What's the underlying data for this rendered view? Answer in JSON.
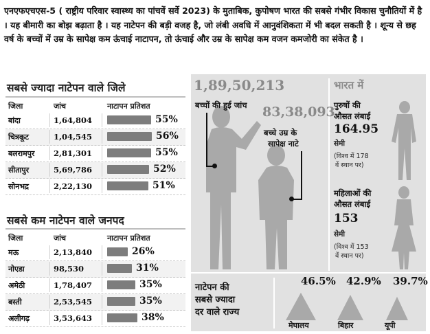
{
  "intro_text": "एनएफएचएस-5 ( राष्ट्रीय परिवार स्वास्थ्य का पांचवें सर्वे 2023) के मुताबिक, कुपोषण भारत की सबसे गंभीर विकास चुनौतियों में है । यह बीमारी का बोझ बढ़ाता है । यह नाटेपन की बड़ी वजह है, जो लंबी अवधि में आनुवंशिकता में भी बदल सकती है । शून्य से छह वर्ष के बच्चों में उम्र के सापेक्ष कम ऊंचाई नाटापन, तो ऊंचाई और उम्र के सापेक्ष कम वजन कमजोरी का संकेत है ।",
  "most_stunted": {
    "title": "सबसे ज्यादा नाटेपन वाले जिले",
    "headers": [
      "जिला",
      "जांच",
      "नाटापन प्रतिशत"
    ],
    "rows": [
      {
        "district": "बांदा",
        "tested": "1,64,804",
        "pct_label": "55%",
        "pct": 55
      },
      {
        "district": "चित्रकूट",
        "tested": "1,04,545",
        "pct_label": "56%",
        "pct": 56
      },
      {
        "district": "बलरामपुर",
        "tested": "2,81,301",
        "pct_label": "55%",
        "pct": 55
      },
      {
        "district": "सीतापुर",
        "tested": "5,69,786",
        "pct_label": "52%",
        "pct": 52
      },
      {
        "district": "सोनभद्र",
        "tested": "2,22,130",
        "pct_label": "51%",
        "pct": 51
      }
    ]
  },
  "least_stunted": {
    "title": "सबसे कम नाटेपन वाले जनपद",
    "headers": [
      "जिला",
      "जांच",
      "नाटापन प्रतिशत"
    ],
    "rows": [
      {
        "district": "मऊ",
        "tested": "2,13,840",
        "pct_label": "26%",
        "pct": 26
      },
      {
        "district": "नोएडा",
        "tested": "98,530",
        "pct_label": "31%",
        "pct": 31
      },
      {
        "district": "अमेठी",
        "tested": "1,78,407",
        "pct_label": "35%",
        "pct": 35
      },
      {
        "district": "बस्ती",
        "tested": "2,53,545",
        "pct_label": "35%",
        "pct": 35
      },
      {
        "district": "अलीगढ़",
        "tested": "3,53,643",
        "pct_label": "38%",
        "pct": 38
      }
    ]
  },
  "children": {
    "tested_number": "1,89,50,213",
    "tested_label": "बच्चों की हुई जांच",
    "stunted_number": "83,38,093",
    "stunted_label_1": "बच्चे उम्र के",
    "stunted_label_2": "सापेक्ष नाटे"
  },
  "india": {
    "title_1": "भारत में",
    "men_label_1": "पुरुषों की",
    "men_label_2": "औसत लंबाई",
    "men_height": "164.95",
    "men_unit": "सेमी",
    "men_rank_1": "(विश्व में 178",
    "men_rank_2": "वें स्थान पर)",
    "women_label_1": "महिलाओं की",
    "women_label_2": "औसत लंबाई",
    "women_height": "153",
    "women_unit": "सेमी",
    "women_rank_1": "(विश्व में 153",
    "women_rank_2": "वें स्थान पर)"
  },
  "states": {
    "title_1": "नाटेपन की",
    "title_2": "सबसे ज्यादा",
    "title_3": "दर वाले राज्य",
    "items": [
      {
        "name": "मेघालय",
        "pct_label": "46.5%",
        "pct": 46.5
      },
      {
        "name": "बिहार",
        "pct_label": "42.9%",
        "pct": 42.9
      },
      {
        "name": "यूपी",
        "pct_label": "39.7%",
        "pct": 39.7
      }
    ]
  },
  "colors": {
    "bar": "#7d7d7d",
    "panel": "#e1e1e1",
    "silhouette": "#a9a9a9",
    "big_number": "#8a8a8a"
  }
}
